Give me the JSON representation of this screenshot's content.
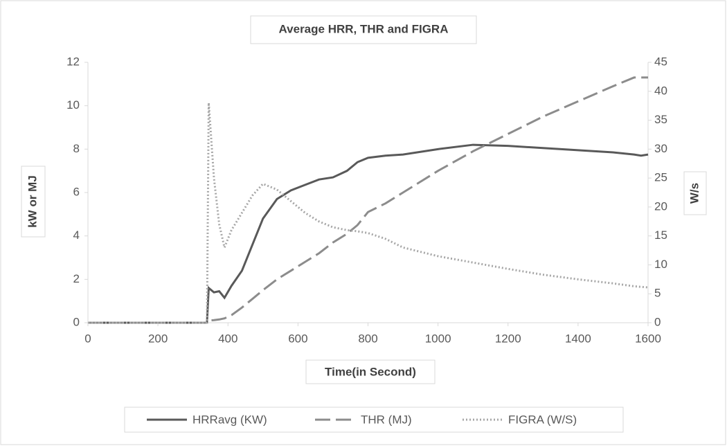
{
  "chart_data": {
    "type": "line",
    "title": "Average HRR, THR and FIGRA",
    "x_label": "Time(in Second)",
    "y_label": "kW or MJ",
    "y2_label": "W/s",
    "x": [
      0,
      100,
      200,
      300,
      340,
      345,
      360,
      375,
      390,
      410,
      440,
      470,
      500,
      540,
      580,
      620,
      660,
      700,
      740,
      770,
      800,
      850,
      900,
      1000,
      1100,
      1200,
      1300,
      1400,
      1500,
      1560,
      1580,
      1600
    ],
    "series": [
      {
        "name": "HRRavg (KW)",
        "color": "#595959",
        "style": "solid",
        "values": [
          0,
          0,
          0,
          0,
          0,
          1.6,
          1.4,
          1.45,
          1.15,
          1.7,
          2.4,
          3.6,
          4.8,
          5.7,
          6.1,
          6.35,
          6.6,
          6.7,
          7.0,
          7.4,
          7.6,
          7.7,
          7.75,
          8.0,
          8.2,
          8.15,
          8.05,
          7.95,
          7.85,
          7.75,
          7.7,
          7.75
        ]
      },
      {
        "name": "THR (MJ)",
        "color": "#8c8c8c",
        "style": "dashed",
        "values": [
          0,
          0,
          0,
          0,
          0,
          0.1,
          0.12,
          0.15,
          0.2,
          0.35,
          0.7,
          1.1,
          1.5,
          2.0,
          2.4,
          2.8,
          3.2,
          3.7,
          4.1,
          4.5,
          5.1,
          5.5,
          6.0,
          7.0,
          7.9,
          8.7,
          9.5,
          10.2,
          10.9,
          11.3,
          11.3,
          11.3
        ]
      },
      {
        "name": "FIGRA (W/S)",
        "color": "#a6a6a6",
        "style": "dotted",
        "axis": "y2",
        "values": [
          0,
          0,
          0,
          0,
          0,
          38,
          25,
          17,
          13,
          16,
          19,
          22,
          24,
          23,
          21,
          19,
          17.5,
          16.5,
          16,
          15.8,
          15.5,
          14.5,
          13,
          11.5,
          10.4,
          9.3,
          8.3,
          7.5,
          6.8,
          6.3,
          6.2,
          6.1
        ]
      }
    ],
    "xlim": [
      0,
      1600
    ],
    "xticks": [
      0,
      200,
      400,
      600,
      800,
      1000,
      1200,
      1400,
      1600
    ],
    "ylim": [
      0,
      12
    ],
    "yticks": [
      0,
      2,
      4,
      6,
      8,
      10,
      12
    ],
    "y2lim": [
      0,
      45
    ],
    "y2ticks": [
      0,
      5,
      10,
      15,
      20,
      25,
      30,
      35,
      40,
      45
    ]
  }
}
